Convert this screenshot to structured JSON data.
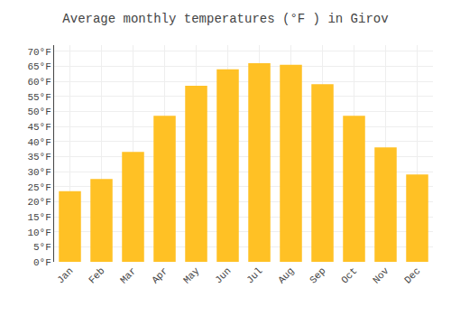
{
  "chart_data": {
    "type": "bar",
    "title": "Average monthly temperatures (°F ) in Girov",
    "categories": [
      "Jan",
      "Feb",
      "Mar",
      "Apr",
      "May",
      "Jun",
      "Jul",
      "Aug",
      "Sep",
      "Oct",
      "Nov",
      "Dec"
    ],
    "values": [
      23.5,
      27.5,
      36.5,
      48.5,
      58.5,
      64.0,
      66.0,
      65.5,
      59.0,
      48.5,
      38.0,
      29.0
    ],
    "color": "#FFC125",
    "ylim": [
      0,
      72
    ],
    "yticks": [
      {
        "value": 0,
        "label": "0°F"
      },
      {
        "value": 5,
        "label": "5°F"
      },
      {
        "value": 10,
        "label": "10°F"
      },
      {
        "value": 15,
        "label": "15°F"
      },
      {
        "value": 20,
        "label": "20°F"
      },
      {
        "value": 25,
        "label": "25°F"
      },
      {
        "value": 30,
        "label": "30°F"
      },
      {
        "value": 35,
        "label": "35°F"
      },
      {
        "value": 40,
        "label": "40°F"
      },
      {
        "value": 45,
        "label": "45°F"
      },
      {
        "value": 50,
        "label": "50°F"
      },
      {
        "value": 55,
        "label": "55°F"
      },
      {
        "value": 60,
        "label": "60°F"
      },
      {
        "value": 65,
        "label": "65°F"
      },
      {
        "value": 70,
        "label": "70°F"
      }
    ],
    "grid": true
  }
}
